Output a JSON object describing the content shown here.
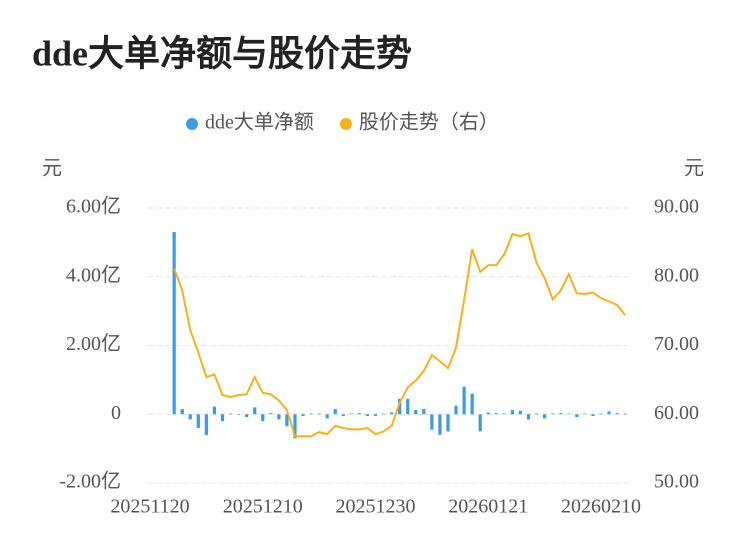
{
  "chart_data": {
    "type": "bar-line",
    "title": "dde大单净额与股价走势",
    "y_axis_label": "元",
    "y2_axis_label": "元",
    "categories": [
      "20251120",
      null,
      null,
      null,
      null,
      null,
      null,
      null,
      null,
      null,
      null,
      null,
      null,
      null,
      "20251210",
      null,
      null,
      null,
      null,
      null,
      null,
      null,
      null,
      null,
      null,
      null,
      null,
      null,
      "20251230",
      null,
      null,
      null,
      null,
      null,
      null,
      null,
      null,
      null,
      null,
      null,
      null,
      null,
      "20260121",
      null,
      null,
      null,
      null,
      null,
      null,
      null,
      null,
      null,
      null,
      null,
      null,
      null,
      "20260210",
      null,
      null,
      null
    ],
    "series": [
      {
        "name": "dde大单净额",
        "type": "bar",
        "color": "#3a9ae8",
        "values": [
          null,
          null,
          null,
          5.3,
          0.15,
          -0.15,
          -0.4,
          -0.6,
          0.22,
          -0.2,
          0.02,
          0.0,
          -0.08,
          0.2,
          -0.2,
          0.03,
          -0.15,
          -0.35,
          -0.7,
          -0.05,
          0.02,
          0.02,
          -0.12,
          0.15,
          -0.05,
          0.02,
          0.03,
          -0.05,
          -0.05,
          0.02,
          0.05,
          0.45,
          0.45,
          0.12,
          0.15,
          -0.45,
          -0.6,
          -0.5,
          0.25,
          0.8,
          0.6,
          -0.5,
          0.05,
          0.03,
          0.02,
          0.12,
          0.1,
          -0.15,
          0.02,
          -0.12,
          0.02,
          0.03,
          0.02,
          -0.08,
          0.02,
          -0.05,
          0.02,
          0.08,
          0.03,
          0.02
        ]
      },
      {
        "name": "股价走势（右）",
        "type": "line",
        "axis": "y2",
        "color": "#f5b21f",
        "values": [
          null,
          null,
          null,
          81.2,
          78.0,
          72.2,
          69.0,
          65.4,
          65.8,
          62.8,
          62.5,
          62.8,
          62.9,
          65.4,
          63.1,
          62.9,
          62.0,
          60.6,
          56.8,
          56.8,
          56.8,
          57.4,
          57.1,
          58.3,
          58.0,
          57.8,
          57.8,
          58.0,
          57.1,
          57.5,
          58.3,
          61.7,
          63.9,
          64.9,
          66.3,
          68.6,
          67.7,
          66.7,
          69.7,
          76.6,
          84.0,
          80.7,
          81.7,
          81.7,
          83.3,
          86.2,
          85.9,
          86.3,
          82.0,
          79.8,
          76.7,
          78.0,
          80.4,
          77.6,
          77.5,
          77.7,
          76.9,
          76.4,
          75.9,
          74.4
        ]
      }
    ],
    "ylim": [
      -2,
      6
    ],
    "yticks": [
      {
        "value": -2,
        "label": "-2.00亿"
      },
      0,
      {
        "value": 2,
        "label": "2.00亿"
      },
      {
        "value": 4,
        "label": "4.00亿"
      },
      {
        "value": 6,
        "label": "6.00亿"
      }
    ],
    "y2lim": [
      50,
      90
    ],
    "y2ticks": [
      {
        "value": 50,
        "label": "50.00"
      },
      {
        "value": 60,
        "label": "60.00"
      },
      {
        "value": 70,
        "label": "70.00"
      },
      {
        "value": 80,
        "label": "80.00"
      },
      {
        "value": 90,
        "label": "90.00"
      }
    ],
    "grid": true,
    "legend": "top"
  }
}
